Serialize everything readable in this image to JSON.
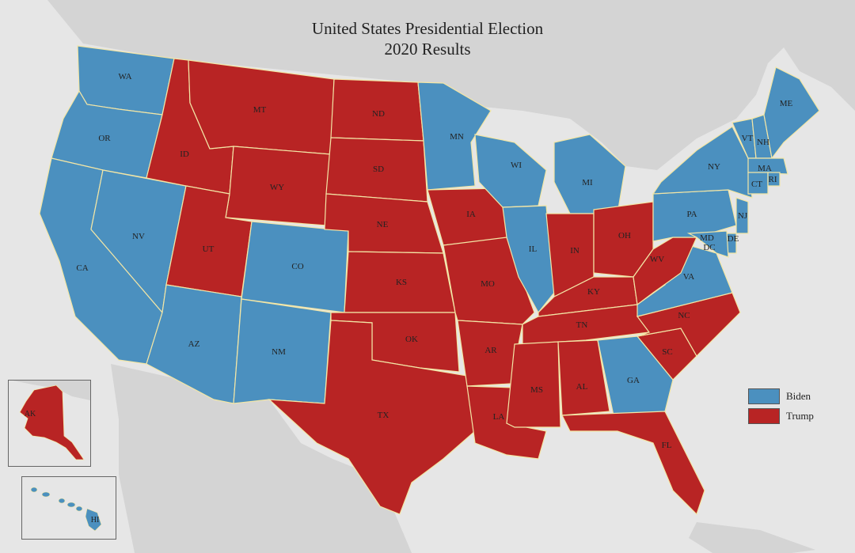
{
  "title": {
    "line1": "United States Presidential Election",
    "line2": "2020 Results"
  },
  "legend": [
    {
      "name": "Biden",
      "color": "#4b90bf"
    },
    {
      "name": "Trump",
      "color": "#b82424"
    }
  ],
  "colors": {
    "biden": "#4b90bf",
    "trump": "#b82424",
    "land": "#cfcfcf",
    "water": "#e6e6e6",
    "border": "#f3e6a6"
  },
  "states": [
    {
      "abbr": "WA",
      "winner": "biden"
    },
    {
      "abbr": "OR",
      "winner": "biden"
    },
    {
      "abbr": "CA",
      "winner": "biden"
    },
    {
      "abbr": "NV",
      "winner": "biden"
    },
    {
      "abbr": "ID",
      "winner": "trump"
    },
    {
      "abbr": "MT",
      "winner": "trump"
    },
    {
      "abbr": "WY",
      "winner": "trump"
    },
    {
      "abbr": "UT",
      "winner": "trump"
    },
    {
      "abbr": "AZ",
      "winner": "biden"
    },
    {
      "abbr": "CO",
      "winner": "biden"
    },
    {
      "abbr": "NM",
      "winner": "biden"
    },
    {
      "abbr": "ND",
      "winner": "trump"
    },
    {
      "abbr": "SD",
      "winner": "trump"
    },
    {
      "abbr": "NE",
      "winner": "trump"
    },
    {
      "abbr": "KS",
      "winner": "trump"
    },
    {
      "abbr": "OK",
      "winner": "trump"
    },
    {
      "abbr": "TX",
      "winner": "trump"
    },
    {
      "abbr": "MN",
      "winner": "biden"
    },
    {
      "abbr": "IA",
      "winner": "trump"
    },
    {
      "abbr": "MO",
      "winner": "trump"
    },
    {
      "abbr": "AR",
      "winner": "trump"
    },
    {
      "abbr": "LA",
      "winner": "trump"
    },
    {
      "abbr": "WI",
      "winner": "biden"
    },
    {
      "abbr": "IL",
      "winner": "biden"
    },
    {
      "abbr": "MI",
      "winner": "biden"
    },
    {
      "abbr": "IN",
      "winner": "trump"
    },
    {
      "abbr": "OH",
      "winner": "trump"
    },
    {
      "abbr": "KY",
      "winner": "trump"
    },
    {
      "abbr": "TN",
      "winner": "trump"
    },
    {
      "abbr": "MS",
      "winner": "trump"
    },
    {
      "abbr": "AL",
      "winner": "trump"
    },
    {
      "abbr": "GA",
      "winner": "biden"
    },
    {
      "abbr": "FL",
      "winner": "trump"
    },
    {
      "abbr": "SC",
      "winner": "trump"
    },
    {
      "abbr": "NC",
      "winner": "trump"
    },
    {
      "abbr": "VA",
      "winner": "biden"
    },
    {
      "abbr": "WV",
      "winner": "trump"
    },
    {
      "abbr": "PA",
      "winner": "biden"
    },
    {
      "abbr": "NY",
      "winner": "biden"
    },
    {
      "abbr": "VT",
      "winner": "biden"
    },
    {
      "abbr": "NH",
      "winner": "biden"
    },
    {
      "abbr": "ME",
      "winner": "biden"
    },
    {
      "abbr": "MA",
      "winner": "biden"
    },
    {
      "abbr": "CT",
      "winner": "biden"
    },
    {
      "abbr": "RI",
      "winner": "biden"
    },
    {
      "abbr": "NJ",
      "winner": "biden"
    },
    {
      "abbr": "DE",
      "winner": "biden"
    },
    {
      "abbr": "MD",
      "winner": "biden"
    },
    {
      "abbr": "DC",
      "winner": "biden"
    },
    {
      "abbr": "AK",
      "winner": "trump"
    },
    {
      "abbr": "HI",
      "winner": "biden"
    }
  ]
}
